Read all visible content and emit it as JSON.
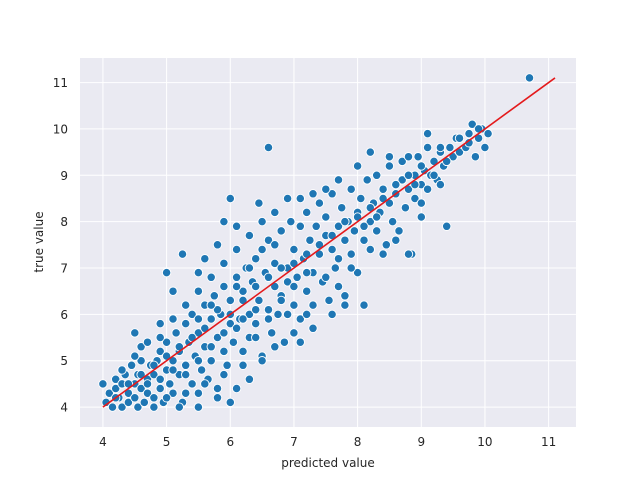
{
  "chart_data": {
    "type": "scatter",
    "title": "",
    "xlabel": "predicted value",
    "ylabel": "true value",
    "xlim": [
      3.64,
      11.43
    ],
    "ylim": [
      3.57,
      11.53
    ],
    "xticks": [
      4,
      5,
      6,
      7,
      8,
      9,
      10,
      11
    ],
    "yticks": [
      4,
      5,
      6,
      7,
      8,
      9,
      10,
      11
    ],
    "xtick_labels": [
      "4",
      "5",
      "6",
      "7",
      "8",
      "9",
      "10",
      "11"
    ],
    "ytick_labels": [
      "4",
      "5",
      "6",
      "7",
      "8",
      "9",
      "10",
      "11"
    ],
    "grid": true,
    "background": "#eaeaf2",
    "point_color": "#1f77b4",
    "point_edge_color": "#ffffff",
    "line_color": "#e41a1c",
    "reference_line": {
      "x": [
        4.0,
        11.1
      ],
      "y": [
        4.0,
        11.1
      ]
    },
    "points": [
      [
        4.0,
        4.5
      ],
      [
        4.05,
        4.1
      ],
      [
        4.1,
        4.3
      ],
      [
        4.15,
        4.0
      ],
      [
        4.2,
        4.4
      ],
      [
        4.2,
        4.6
      ],
      [
        4.25,
        4.2
      ],
      [
        4.3,
        4.5
      ],
      [
        4.3,
        4.0
      ],
      [
        4.35,
        4.7
      ],
      [
        4.4,
        4.3
      ],
      [
        4.4,
        4.1
      ],
      [
        4.45,
        4.9
      ],
      [
        4.5,
        4.5
      ],
      [
        4.5,
        4.2
      ],
      [
        4.55,
        4.0
      ],
      [
        4.55,
        4.7
      ],
      [
        4.6,
        4.4
      ],
      [
        4.6,
        5.0
      ],
      [
        4.65,
        4.1
      ],
      [
        4.7,
        4.6
      ],
      [
        4.7,
        4.3
      ],
      [
        4.75,
        4.9
      ],
      [
        4.8,
        4.2
      ],
      [
        4.8,
        4.7
      ],
      [
        4.85,
        5.0
      ],
      [
        4.9,
        4.4
      ],
      [
        4.9,
        5.2
      ],
      [
        4.95,
        4.1
      ],
      [
        5.0,
        4.8
      ],
      [
        5.0,
        5.4
      ],
      [
        5.05,
        4.5
      ],
      [
        5.1,
        5.0
      ],
      [
        5.1,
        4.3
      ],
      [
        5.15,
        5.6
      ],
      [
        5.2,
        4.7
      ],
      [
        5.2,
        5.2
      ],
      [
        5.25,
        4.1
      ],
      [
        5.3,
        5.8
      ],
      [
        5.3,
        4.9
      ],
      [
        5.35,
        5.4
      ],
      [
        5.4,
        4.5
      ],
      [
        5.4,
        6.0
      ],
      [
        5.45,
        5.1
      ],
      [
        5.5,
        5.6
      ],
      [
        5.5,
        4.3
      ],
      [
        5.55,
        4.8
      ],
      [
        5.6,
        6.2
      ],
      [
        5.6,
        5.3
      ],
      [
        5.65,
        4.6
      ],
      [
        5.7,
        5.9
      ],
      [
        5.7,
        5.0
      ],
      [
        5.75,
        6.4
      ],
      [
        5.8,
        5.5
      ],
      [
        5.8,
        4.4
      ],
      [
        5.85,
        6.0
      ],
      [
        5.9,
        5.2
      ],
      [
        5.9,
        6.6
      ],
      [
        5.95,
        4.9
      ],
      [
        6.0,
        5.8
      ],
      [
        6.0,
        6.3
      ],
      [
        6.05,
        5.4
      ],
      [
        6.1,
        6.8
      ],
      [
        6.1,
        4.4
      ],
      [
        6.15,
        5.9
      ],
      [
        6.2,
        6.5
      ],
      [
        6.2,
        5.2
      ],
      [
        6.25,
        7.0
      ],
      [
        6.3,
        6.0
      ],
      [
        6.3,
        5.5
      ],
      [
        6.35,
        6.7
      ],
      [
        6.4,
        7.2
      ],
      [
        6.4,
        5.8
      ],
      [
        6.45,
        6.3
      ],
      [
        6.5,
        7.4
      ],
      [
        6.5,
        5.1
      ],
      [
        6.55,
        6.9
      ],
      [
        6.6,
        6.1
      ],
      [
        6.6,
        7.6
      ],
      [
        6.65,
        5.6
      ],
      [
        6.7,
        6.6
      ],
      [
        6.7,
        7.1
      ],
      [
        6.75,
        6.0
      ],
      [
        6.8,
        7.8
      ],
      [
        6.8,
        6.4
      ],
      [
        6.85,
        5.4
      ],
      [
        6.9,
        7.0
      ],
      [
        6.9,
        6.7
      ],
      [
        6.95,
        8.0
      ],
      [
        7.0,
        6.2
      ],
      [
        7.0,
        7.4
      ],
      [
        7.05,
        6.8
      ],
      [
        7.1,
        7.9
      ],
      [
        7.1,
        5.9
      ],
      [
        7.15,
        7.2
      ],
      [
        7.2,
        6.5
      ],
      [
        7.2,
        8.2
      ],
      [
        7.25,
        7.6
      ],
      [
        7.3,
        6.9
      ],
      [
        7.3,
        6.2
      ],
      [
        7.35,
        7.9
      ],
      [
        7.4,
        7.3
      ],
      [
        7.4,
        8.4
      ],
      [
        7.45,
        6.7
      ],
      [
        7.5,
        7.7
      ],
      [
        7.5,
        8.1
      ],
      [
        7.55,
        6.3
      ],
      [
        7.6,
        7.4
      ],
      [
        7.6,
        8.6
      ],
      [
        7.65,
        7.0
      ],
      [
        7.7,
        7.9
      ],
      [
        7.7,
        6.6
      ],
      [
        7.75,
        8.3
      ],
      [
        7.8,
        7.6
      ],
      [
        7.8,
        6.2
      ],
      [
        7.85,
        8.0
      ],
      [
        7.9,
        8.7
      ],
      [
        7.9,
        7.3
      ],
      [
        7.95,
        7.8
      ],
      [
        8.0,
        8.2
      ],
      [
        8.0,
        6.9
      ],
      [
        8.05,
        8.5
      ],
      [
        8.1,
        7.6
      ],
      [
        8.15,
        8.9
      ],
      [
        8.2,
        8.0
      ],
      [
        8.2,
        7.4
      ],
      [
        8.25,
        8.4
      ],
      [
        8.3,
        9.0
      ],
      [
        8.3,
        7.8
      ],
      [
        8.35,
        8.2
      ],
      [
        8.4,
        8.7
      ],
      [
        8.45,
        7.5
      ],
      [
        8.5,
        8.4
      ],
      [
        8.5,
        9.2
      ],
      [
        8.55,
        8.0
      ],
      [
        8.6,
        8.6
      ],
      [
        8.65,
        7.8
      ],
      [
        8.7,
        8.9
      ],
      [
        8.7,
        9.3
      ],
      [
        8.75,
        8.3
      ],
      [
        8.8,
        8.7
      ],
      [
        8.85,
        7.3
      ],
      [
        8.9,
        9.0
      ],
      [
        8.9,
        8.5
      ],
      [
        8.95,
        9.4
      ],
      [
        9.0,
        8.8
      ],
      [
        9.0,
        8.4
      ],
      [
        9.05,
        9.1
      ],
      [
        9.1,
        9.6
      ],
      [
        9.1,
        8.7
      ],
      [
        9.15,
        9.0
      ],
      [
        9.2,
        9.3
      ],
      [
        9.25,
        8.9
      ],
      [
        9.3,
        9.5
      ],
      [
        9.35,
        9.2
      ],
      [
        9.4,
        7.9
      ],
      [
        9.45,
        9.6
      ],
      [
        9.5,
        9.4
      ],
      [
        9.55,
        9.8
      ],
      [
        9.6,
        9.5
      ],
      [
        9.7,
        9.6
      ],
      [
        9.75,
        9.9
      ],
      [
        9.8,
        10.1
      ],
      [
        9.85,
        9.4
      ],
      [
        9.9,
        9.8
      ],
      [
        9.95,
        10.0
      ],
      [
        10.0,
        9.6
      ],
      [
        10.05,
        9.9
      ],
      [
        10.7,
        11.1
      ],
      [
        4.9,
        5.8
      ],
      [
        5.0,
        6.9
      ],
      [
        5.1,
        6.5
      ],
      [
        5.25,
        7.3
      ],
      [
        5.5,
        6.9
      ],
      [
        5.6,
        7.2
      ],
      [
        5.8,
        7.5
      ],
      [
        5.9,
        8.0
      ],
      [
        6.0,
        8.5
      ],
      [
        6.1,
        7.9
      ],
      [
        6.45,
        8.4
      ],
      [
        6.6,
        9.6
      ],
      [
        6.3,
        4.6
      ],
      [
        5.8,
        4.2
      ],
      [
        6.0,
        4.1
      ],
      [
        5.5,
        4.0
      ],
      [
        5.2,
        4.0
      ],
      [
        4.8,
        4.0
      ],
      [
        4.5,
        5.6
      ],
      [
        4.6,
        5.3
      ],
      [
        7.1,
        5.4
      ],
      [
        7.3,
        5.7
      ],
      [
        7.6,
        6.0
      ],
      [
        7.8,
        6.4
      ],
      [
        8.1,
        6.2
      ],
      [
        8.4,
        7.3
      ],
      [
        8.6,
        7.6
      ],
      [
        8.8,
        7.3
      ],
      [
        9.0,
        8.1
      ],
      [
        9.3,
        8.8
      ],
      [
        6.9,
        6.0
      ],
      [
        7.2,
        6.0
      ],
      [
        7.0,
        5.6
      ],
      [
        6.7,
        5.3
      ],
      [
        6.5,
        5.0
      ],
      [
        6.2,
        4.9
      ],
      [
        5.9,
        4.7
      ],
      [
        5.6,
        4.5
      ],
      [
        5.3,
        4.3
      ],
      [
        5.0,
        4.2
      ],
      [
        4.3,
        4.8
      ],
      [
        4.5,
        5.1
      ],
      [
        4.7,
        5.4
      ],
      [
        4.9,
        5.5
      ],
      [
        5.1,
        5.9
      ],
      [
        5.3,
        6.2
      ],
      [
        5.5,
        6.5
      ],
      [
        5.7,
        6.8
      ],
      [
        5.9,
        7.1
      ],
      [
        6.1,
        7.4
      ],
      [
        6.3,
        7.7
      ],
      [
        6.5,
        8.0
      ],
      [
        6.7,
        8.2
      ],
      [
        6.9,
        8.5
      ],
      [
        7.1,
        8.5
      ],
      [
        7.3,
        8.6
      ],
      [
        7.5,
        8.7
      ],
      [
        7.7,
        8.9
      ],
      [
        8.0,
        9.2
      ],
      [
        8.2,
        9.5
      ],
      [
        8.5,
        9.4
      ],
      [
        8.8,
        9.4
      ],
      [
        9.1,
        9.9
      ],
      [
        9.3,
        9.6
      ],
      [
        9.6,
        9.8
      ],
      [
        9.9,
        10.0
      ],
      [
        9.75,
        9.7
      ],
      [
        9.4,
        9.3
      ],
      [
        9.2,
        9.0
      ],
      [
        8.9,
        8.8
      ],
      [
        5.4,
        5.5
      ],
      [
        5.6,
        5.7
      ],
      [
        5.8,
        6.1
      ],
      [
        6.0,
        6.0
      ],
      [
        6.2,
        6.3
      ],
      [
        6.4,
        6.6
      ],
      [
        6.6,
        6.8
      ],
      [
        6.8,
        7.0
      ],
      [
        7.0,
        7.1
      ],
      [
        7.2,
        7.3
      ],
      [
        7.4,
        7.5
      ],
      [
        7.6,
        7.7
      ],
      [
        7.8,
        8.0
      ],
      [
        8.0,
        8.1
      ],
      [
        8.2,
        8.3
      ],
      [
        8.4,
        8.5
      ],
      [
        8.6,
        8.8
      ],
      [
        8.8,
        9.0
      ],
      [
        9.0,
        9.2
      ],
      [
        5.2,
        5.3
      ],
      [
        5.0,
        5.1
      ],
      [
        4.8,
        4.9
      ],
      [
        4.6,
        4.7
      ],
      [
        4.4,
        4.5
      ],
      [
        4.2,
        4.2
      ],
      [
        6.7,
        7.5
      ],
      [
        6.3,
        7.0
      ],
      [
        6.1,
        6.6
      ],
      [
        5.7,
        6.2
      ],
      [
        5.5,
        5.9
      ],
      [
        7.5,
        6.8
      ],
      [
        7.7,
        7.2
      ],
      [
        7.9,
        7.0
      ],
      [
        8.1,
        7.9
      ],
      [
        8.3,
        8.1
      ],
      [
        6.4,
        5.5
      ],
      [
        6.6,
        5.9
      ],
      [
        6.8,
        6.3
      ],
      [
        7.0,
        6.6
      ],
      [
        7.2,
        6.9
      ],
      [
        5.3,
        4.7
      ],
      [
        5.5,
        5.0
      ],
      [
        5.7,
        5.3
      ],
      [
        5.9,
        5.6
      ],
      [
        6.1,
        5.7
      ],
      [
        4.9,
        4.6
      ],
      [
        5.1,
        4.8
      ],
      [
        4.7,
        4.5
      ],
      [
        6.2,
        5.9
      ],
      [
        6.4,
        6.1
      ]
    ]
  }
}
